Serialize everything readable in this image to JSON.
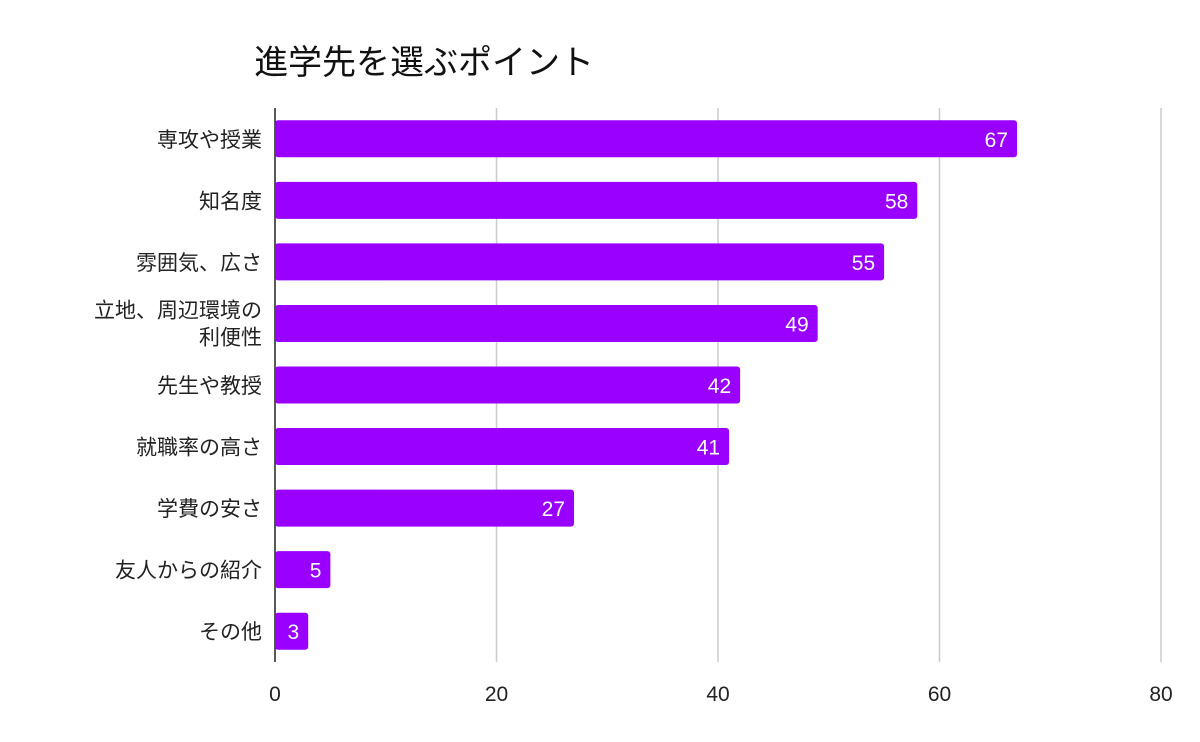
{
  "chart_data": {
    "type": "bar",
    "orientation": "horizontal",
    "title": "進学先を選ぶポイント",
    "xlabel": "",
    "ylabel": "",
    "categories": [
      "専攻や授業",
      "知名度",
      "雰囲気、広さ",
      "立地、周辺環境の利便性",
      "先生や教授",
      "就職率の高さ",
      "学費の安さ",
      "友人からの紹介",
      "その他"
    ],
    "values": [
      67,
      58,
      55,
      49,
      42,
      41,
      27,
      5,
      3
    ],
    "xlim": [
      0,
      80
    ],
    "xticks": [
      0,
      20,
      40,
      60,
      80
    ],
    "grid": true,
    "legend": "none",
    "bar_color": "#9900ff",
    "gridline_color": "#cccccc"
  }
}
